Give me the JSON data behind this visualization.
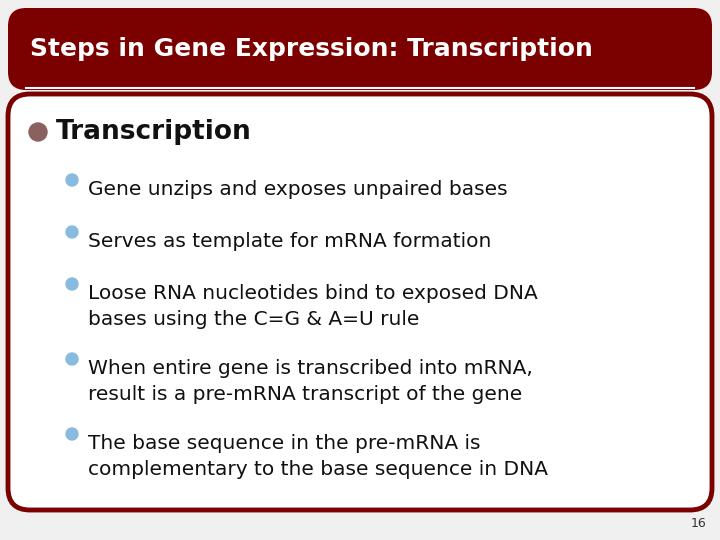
{
  "title": "Steps in Gene Expression: Transcription",
  "title_bg_color": "#7B0000",
  "title_text_color": "#FFFFFF",
  "slide_bg_color": "#F0F0F0",
  "content_bg_color": "#F0F0F0",
  "border_color": "#7B0000",
  "main_bullet": "Transcription",
  "main_bullet_color": "#8B6060",
  "sub_bullet_color": "#88BBDD",
  "sub_bullets": [
    "Gene unzips and exposes unpaired bases",
    "Serves as template for mRNA formation",
    "Loose RNA nucleotides bind to exposed DNA\nbases using the C=G & A=U rule",
    "When entire gene is transcribed into mRNA,\nresult is a pre-mRNA transcript of the gene",
    "The base sequence in the pre-mRNA is\ncomplementary to the base sequence in DNA"
  ],
  "page_number": "16",
  "title_fontsize": 18,
  "main_bullet_fontsize": 19,
  "sub_bullet_fontsize": 14.5
}
